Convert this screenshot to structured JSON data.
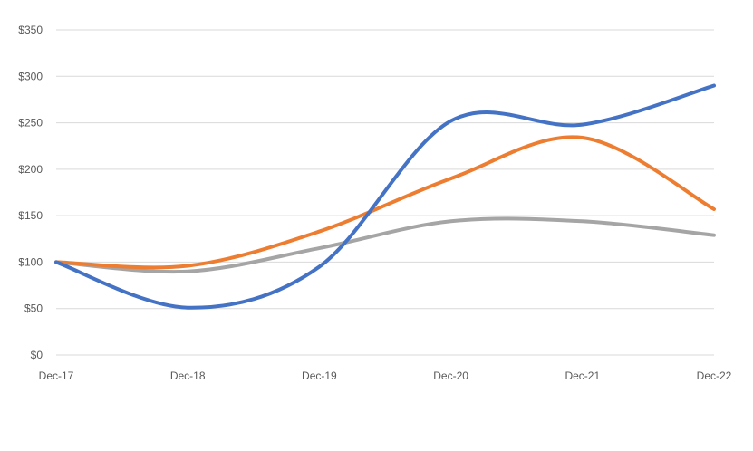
{
  "chart_data": {
    "type": "line",
    "categories": [
      "Dec-17",
      "Dec-18",
      "Dec-19",
      "Dec-20",
      "Dec-21",
      "Dec-22"
    ],
    "series": [
      {
        "color": "#4472c4",
        "values": [
          100,
          51,
          95,
          252,
          248,
          290
        ]
      },
      {
        "color": "#ed7d31",
        "values": [
          100,
          96,
          133,
          190,
          234,
          157
        ]
      },
      {
        "color": "#a5a5a5",
        "values": [
          100,
          90,
          115,
          144,
          144,
          129
        ]
      }
    ],
    "y_ticks": [
      "$0",
      "$50",
      "$100",
      "$150",
      "$200",
      "$250",
      "$300",
      "$350"
    ],
    "ylim": [
      0,
      350
    ],
    "grid": true,
    "legend": "none",
    "title": "",
    "xlabel": "",
    "ylabel": ""
  }
}
